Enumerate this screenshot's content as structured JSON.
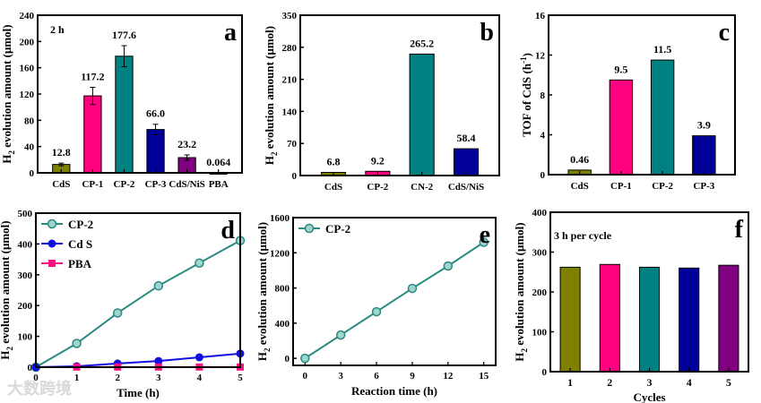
{
  "chart_data": [
    {
      "panel": "a",
      "type": "bar",
      "note": "2 h",
      "categories": [
        "CdS",
        "CP-1",
        "CP-2",
        "CP-3",
        "CdS/NiS",
        "PBA"
      ],
      "values": [
        12.8,
        117.2,
        177.6,
        66.0,
        23.2,
        0.064
      ],
      "errors": [
        2,
        13,
        16,
        8,
        4,
        0
      ],
      "labels": [
        "12.8",
        "117.2",
        "177.6",
        "66.0",
        "23.2",
        "0.064"
      ],
      "colors": [
        "#808000",
        "#ff0080",
        "#008080",
        "#000099",
        "#800080",
        "#008000"
      ],
      "ylabel": [
        "H",
        "2",
        " evolution amount (μmol)"
      ],
      "ylabel_script": "sub",
      "ylim": [
        0,
        240
      ],
      "yticks": [
        0,
        40,
        80,
        120,
        160,
        200,
        240
      ]
    },
    {
      "panel": "b",
      "type": "bar",
      "categories": [
        "CdS",
        "CP-2",
        "CN-2",
        "CdS/NiS"
      ],
      "values": [
        6.8,
        9.2,
        265.2,
        58.4
      ],
      "labels": [
        "6.8",
        "9.2",
        "265.2",
        "58.4"
      ],
      "colors": [
        "#808000",
        "#ff0080",
        "#008080",
        "#000099"
      ],
      "ylabel": [
        "H",
        "2",
        " evolution amount (μmol)"
      ],
      "ylabel_script": "sub",
      "ylim": [
        0,
        350
      ],
      "yticks": [
        0,
        70,
        140,
        210,
        280,
        350
      ]
    },
    {
      "panel": "c",
      "type": "bar",
      "categories": [
        "CdS",
        "CP-1",
        "CP-2",
        "CP-3"
      ],
      "values": [
        0.46,
        9.5,
        11.5,
        3.9
      ],
      "labels": [
        "0.46",
        "9.5",
        "11.5",
        "3.9"
      ],
      "colors": [
        "#808000",
        "#ff0080",
        "#008080",
        "#000099"
      ],
      "ylabel": [
        "TOF of CdS (h",
        "-1",
        ")"
      ],
      "ylabel_script": "sup",
      "ylim": [
        0,
        16
      ],
      "yticks": [
        0,
        4,
        8,
        12,
        16
      ]
    },
    {
      "panel": "d",
      "type": "line",
      "xlabel": "Time (h)",
      "xlim": [
        0,
        5
      ],
      "xticks": [
        0,
        1,
        2,
        3,
        4,
        5
      ],
      "ylabel": [
        "H",
        "2",
        " evolution amount (μmol)"
      ],
      "ylabel_script": "sub",
      "ylim": [
        0,
        500
      ],
      "yticks": [
        0,
        100,
        200,
        300,
        400,
        500
      ],
      "legend": "top-left",
      "series": [
        {
          "name": "CP-2",
          "color": "#2a8a80",
          "marker": "circle-open",
          "x": [
            0,
            1,
            2,
            3,
            4,
            5
          ],
          "y": [
            0,
            77,
            176,
            264,
            338,
            411
          ]
        },
        {
          "name": "Cd S",
          "color": "#1010e0",
          "marker": "circle",
          "x": [
            0,
            1,
            2,
            3,
            4,
            5
          ],
          "y": [
            0,
            3,
            12,
            20,
            32,
            44
          ]
        },
        {
          "name": "PBA",
          "color": "#ff1080",
          "marker": "square",
          "x": [
            1,
            2,
            3,
            4,
            5
          ],
          "y": [
            0.5,
            0.5,
            0.5,
            0.5,
            0.5
          ]
        }
      ]
    },
    {
      "panel": "e",
      "type": "line",
      "xlabel": "Reaction time (h)",
      "xlim": [
        -1,
        16
      ],
      "xticks": [
        0,
        3,
        6,
        9,
        12,
        15
      ],
      "ylabel": [
        "H",
        "2",
        " evolution amount (μmol)"
      ],
      "ylabel_script": "sub",
      "ylim": [
        -80,
        1600
      ],
      "yticks": [
        0,
        400,
        800,
        1200,
        1600
      ],
      "legend": "top-left",
      "series": [
        {
          "name": "CP-2",
          "color": "#2a8a80",
          "marker": "circle-open",
          "x": [
            0,
            3,
            6,
            9,
            12,
            15
          ],
          "y": [
            0,
            265,
            530,
            795,
            1050,
            1320
          ]
        }
      ]
    },
    {
      "panel": "f",
      "type": "bar",
      "note": "3 h per cycle",
      "categories": [
        "1",
        "2",
        "3",
        "4",
        "5"
      ],
      "xlabel": "Cycles",
      "values": [
        262,
        269,
        262,
        260,
        267
      ],
      "colors": [
        "#808000",
        "#ff0080",
        "#008080",
        "#000099",
        "#800080"
      ],
      "ylabel": [
        "H",
        "2",
        " evolution amount (μmol)"
      ],
      "ylabel_script": "sub",
      "ylim": [
        0,
        400
      ],
      "yticks": [
        0,
        100,
        200,
        300,
        400
      ]
    }
  ],
  "watermark": "大数跨境"
}
